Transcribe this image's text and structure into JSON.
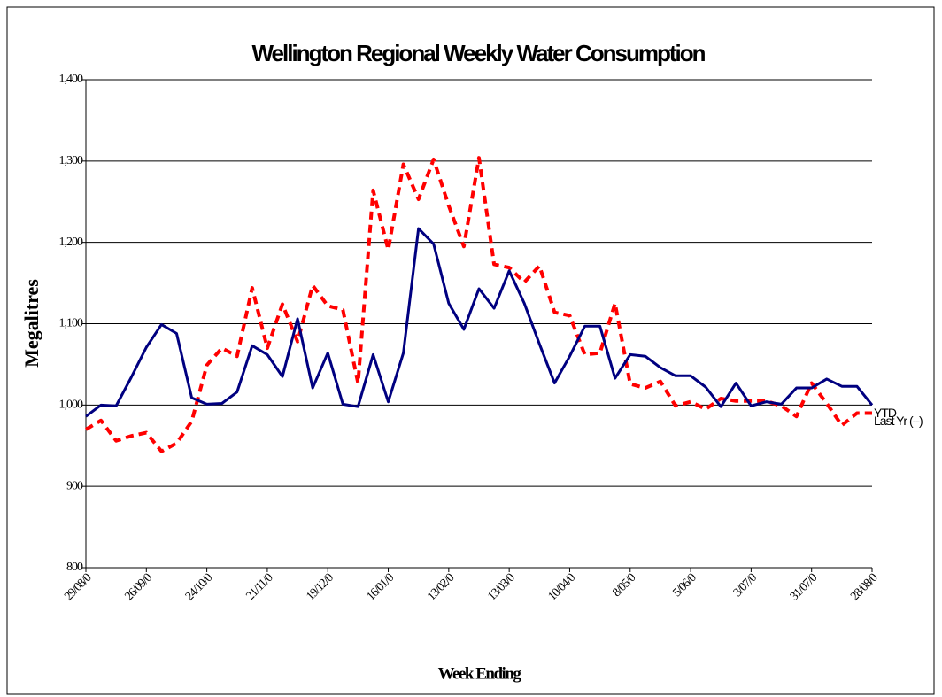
{
  "chart_data": {
    "type": "line",
    "title": "Wellington Regional Weekly Water Consumption",
    "x_label": "Week Ending",
    "y_label": "Megalitres",
    "categories": [
      "29/08/0",
      null,
      null,
      null,
      "26/09/0",
      null,
      null,
      null,
      "24/10/0",
      null,
      null,
      null,
      "21/11/0",
      null,
      null,
      null,
      "19/12/0",
      null,
      null,
      null,
      "16/01/0",
      null,
      null,
      null,
      "13/02/0",
      null,
      null,
      null,
      "13/03/0",
      null,
      null,
      null,
      "10/04/0",
      null,
      null,
      null,
      "8/05/0",
      null,
      null,
      null,
      "5/06/0",
      null,
      null,
      null,
      "3/07/0",
      null,
      null,
      null,
      "31/07/0",
      null,
      null,
      null,
      "28/08/0"
    ],
    "series": [
      {
        "name": "YTD",
        "color": "#000080",
        "dashed": false,
        "values": [
          986,
          1000,
          999,
          1034,
          1071,
          1099,
          1088,
          1009,
          1001,
          1002,
          1016,
          1073,
          1062,
          1035,
          1106,
          1021,
          1064,
          1001,
          998,
          1062,
          1004,
          1064,
          1217,
          1198,
          1125,
          1093,
          1143,
          1119,
          1165,
          1125,
          1075,
          1027,
          1060,
          1097,
          1097,
          1033,
          1062,
          1060,
          1046,
          1036,
          1036,
          1022,
          998,
          1027,
          999,
          1004,
          1001,
          1021,
          1021,
          1032,
          1023,
          1023,
          1000
        ]
      },
      {
        "name": "Last Yr (--)",
        "color": "#ff0000",
        "dashed": true,
        "values": [
          970,
          981,
          956,
          962,
          966,
          943,
          953,
          980,
          1049,
          1070,
          1060,
          1144,
          1070,
          1124,
          1078,
          1147,
          1122,
          1117,
          1027,
          1264,
          1191,
          1296,
          1253,
          1302,
          1245,
          1195,
          1304,
          1173,
          1169,
          1151,
          1171,
          1114,
          1110,
          1062,
          1064,
          1125,
          1026,
          1021,
          1029,
          999,
          1004,
          995,
          1008,
          1005,
          1005,
          1005,
          999,
          986,
          1027,
          1002,
          975,
          990,
          990
        ]
      }
    ],
    "ylim": [
      800,
      1400
    ],
    "yticks": [
      800,
      900,
      {
        "value": 1000,
        "label": "1,000"
      },
      {
        "value": 1100,
        "label": "1,100"
      },
      {
        "value": 1200,
        "label": "1,200"
      },
      {
        "value": 1300,
        "label": "1,300"
      },
      {
        "value": 1400,
        "label": "1,400"
      }
    ],
    "grid": true
  }
}
